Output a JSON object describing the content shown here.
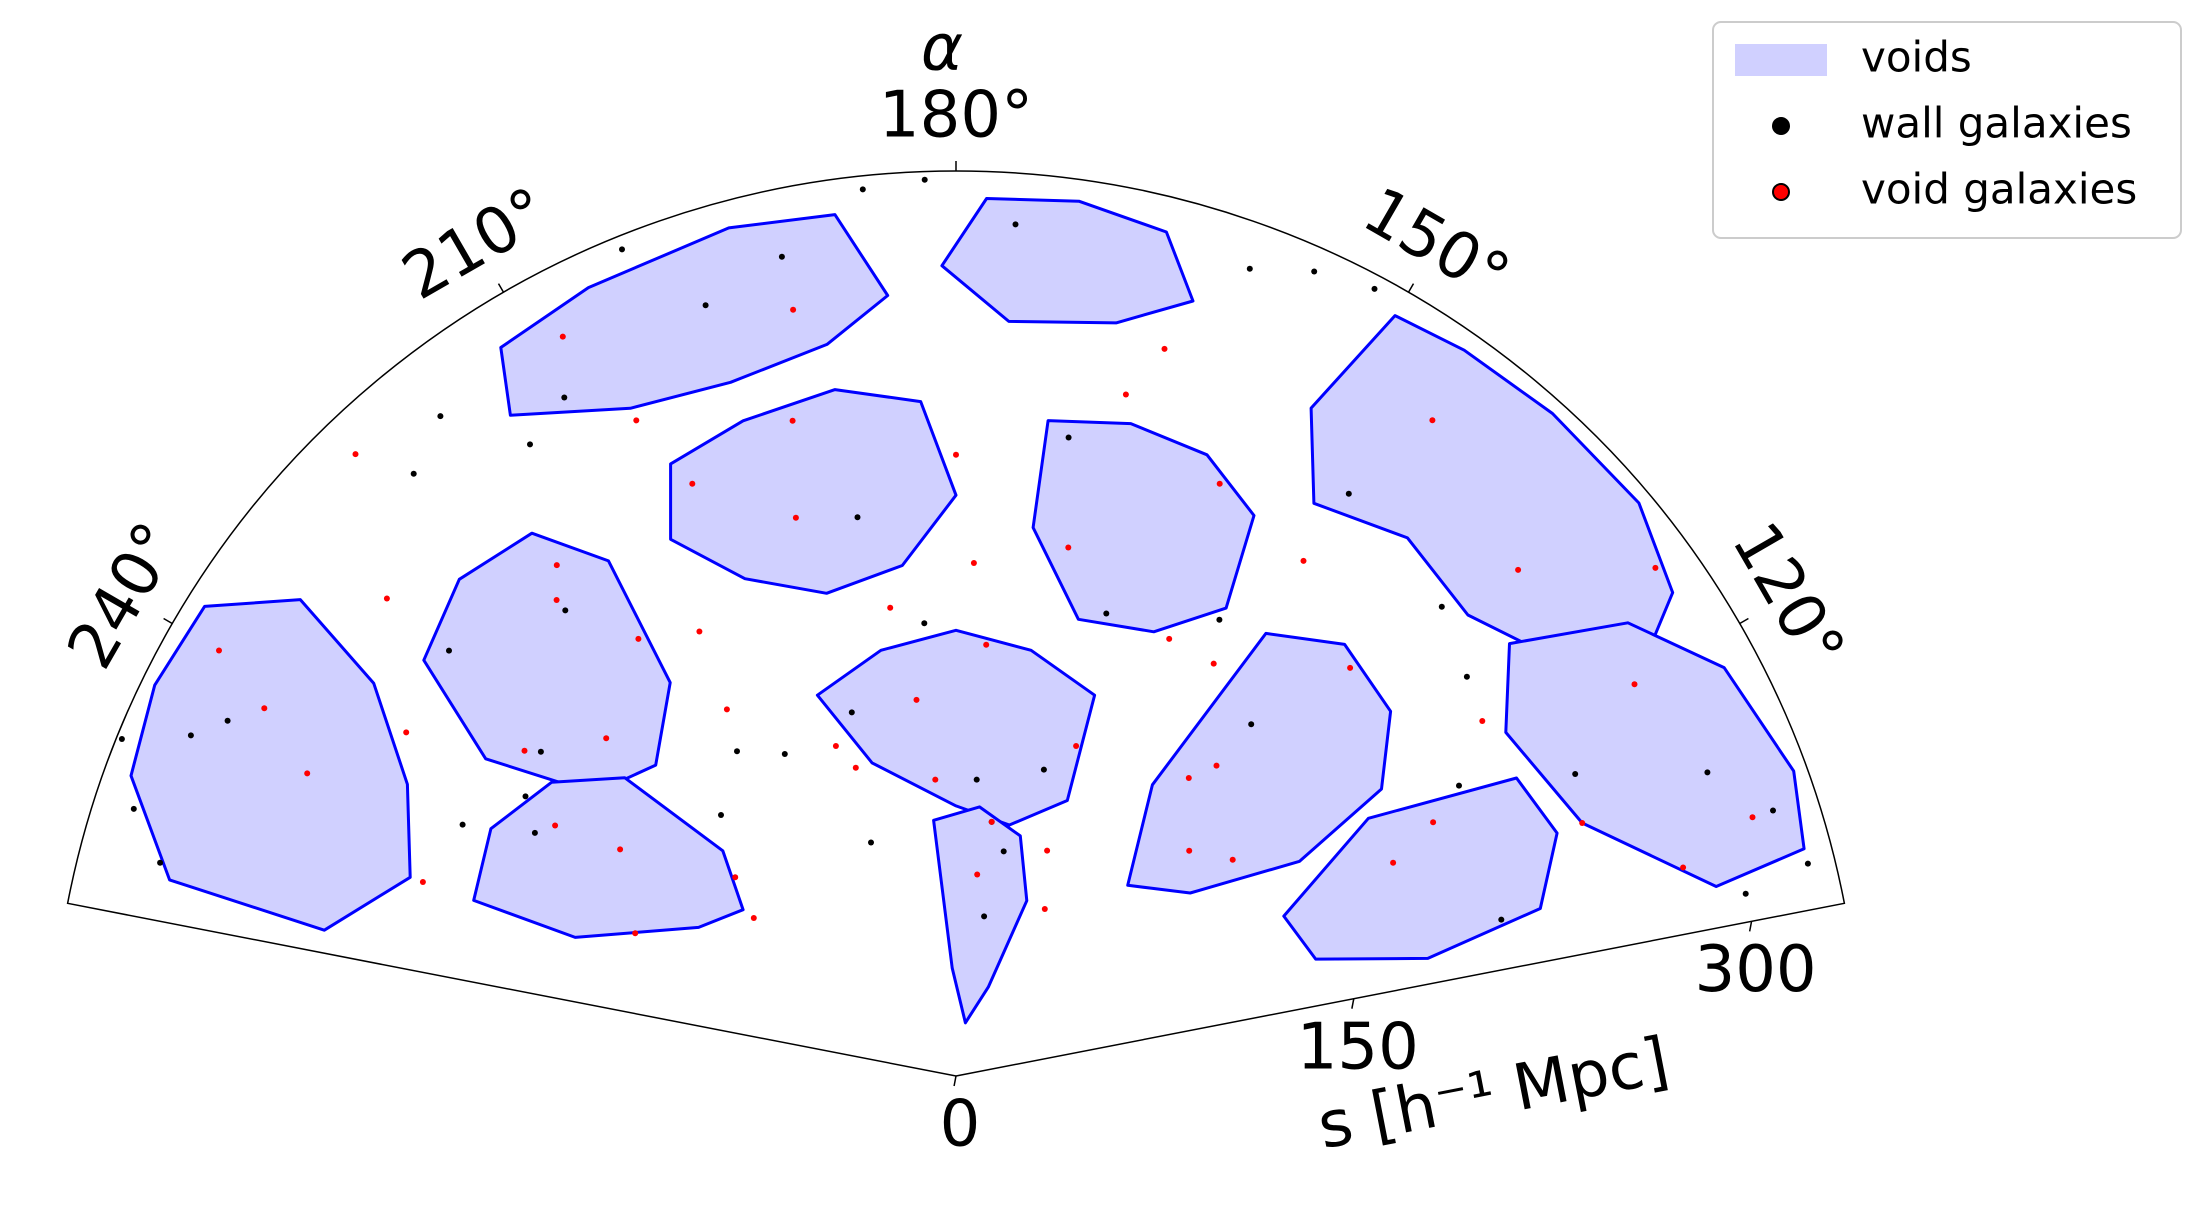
{
  "chart_data": {
    "type": "polar",
    "theta_label": "α",
    "r_label": "s [h⁻¹ Mpc]",
    "thetalim": [
      101,
      259
    ],
    "rlim": [
      0,
      335
    ],
    "thetaticks": [
      {
        "value": 120,
        "label": "120°"
      },
      {
        "value": 150,
        "label": "150°"
      },
      {
        "value": 180,
        "label": "180°"
      },
      {
        "value": 210,
        "label": "210°"
      },
      {
        "value": 240,
        "label": "240°"
      }
    ],
    "rticks": [
      0,
      150,
      300
    ],
    "grid": false,
    "legend": "upper right",
    "series": [
      {
        "name": "voids",
        "color": "#d0d0ff",
        "edge_color": "#0000ff",
        "polygons": [
          {
            "alpha": [
              150,
              145,
              138,
              130,
              124,
              120,
              125,
              132,
              140,
              148,
              152
            ],
            "s": [
              325,
              328,
              330,
              330,
              320,
              290,
              270,
              255,
              260,
              250,
              280
            ]
          },
          {
            "alpha": [
              105,
              110,
              118,
              124,
              128,
              122,
              112,
              104
            ],
            "s": [
              325,
              330,
              322,
              300,
              260,
              240,
              250,
              290
            ]
          },
          {
            "alpha": [
              256,
              250,
              244,
              238,
              234,
              236,
              242,
              250,
              257
            ],
            "s": [
              300,
              325,
              330,
              328,
              300,
              260,
              230,
              215,
              240
            ]
          },
          {
            "alpha": [
              212,
              205,
              195,
              188,
              185,
              190,
              198,
              206,
              214
            ],
            "s": [
              318,
              322,
              325,
              322,
              290,
              275,
              270,
              275,
              295
            ]
          },
          {
            "alpha": [
              178,
              172,
              166,
              163,
              168,
              176,
              181
            ],
            "s": [
              325,
              327,
              322,
              300,
              285,
              280,
              300
            ]
          },
          {
            "alpha": [
              205,
              198,
              190,
              183,
              180,
              186,
              195,
              203,
              208
            ],
            "s": [
              250,
              255,
              258,
              250,
              215,
              190,
              185,
              200,
              225
            ]
          },
          {
            "alpha": [
              172,
              165,
              158,
              152,
              150,
              156,
              165,
              172
            ],
            "s": [
              245,
              250,
              248,
              235,
              200,
              180,
              175,
              205
            ]
          },
          {
            "alpha": [
              200,
              190,
              180,
              170,
              160,
              158,
              168,
              180,
              195
            ],
            "s": [
              150,
              160,
              165,
              160,
              150,
              110,
              95,
              100,
              120
            ]
          },
          {
            "alpha": [
              145,
              138,
              130,
              124,
              122,
              128,
              138,
              146
            ],
            "s": [
              200,
              215,
              210,
              190,
              150,
              110,
              95,
              130
            ]
          },
          {
            "alpha": [
              232,
              225,
              218,
              214,
              216,
              224,
              232,
              236
            ],
            "s": [
              250,
              260,
              255,
              230,
              180,
              160,
              170,
              210
            ]
          },
          {
            "alpha": [
              250,
              242,
              234,
              228,
              226,
              232,
              240,
              250
            ],
            "s": [
              190,
              195,
              185,
              165,
              120,
              100,
              110,
              150
            ]
          },
          {
            "alpha": [
              185,
              175,
              165,
              158,
              160,
              170,
              182
            ],
            "s": [
              95,
              100,
              92,
              70,
              35,
              20,
              40
            ]
          },
          {
            "alpha": [
              118,
              112,
              106,
              104,
              108,
              116,
              122
            ],
            "s": [
              235,
              240,
              225,
              180,
              140,
              135,
              180
            ]
          }
        ]
      },
      {
        "name": "wall galaxies",
        "color": "#000000",
        "alpha": [
          255,
          252,
          248,
          246,
          243,
          240,
          237,
          222,
          218,
          214,
          210,
          202,
          198,
          192,
          186,
          182,
          176,
          170,
          160,
          156,
          152,
          146,
          134,
          128,
          116,
          112,
          108,
          104,
          103,
          106,
          244,
          230,
          220,
          208,
          196,
          176,
          172,
          168,
          164,
          170,
          214,
          222,
          232,
          190,
          150,
          140,
          120,
          162,
          184,
          200
        ],
        "s": [
          305,
          320,
          333,
          310,
          205,
          180,
          190,
          300,
          310,
          282,
          290,
          330,
          300,
          310,
          330,
          332,
          316,
          240,
          318,
          326,
          330,
          260,
          250,
          240,
          255,
          300,
          318,
          325,
          300,
          210,
          300,
          245,
          225,
          135,
          140,
          110,
          95,
          85,
          118,
          60,
          145,
          130,
          195,
          210,
          195,
          170,
          215,
          180,
          168,
          92
        ]
      },
      {
        "name": "void galaxies",
        "color": "#ff0000",
        "alpha": [
          245,
          242,
          240,
          238,
          236,
          233,
          230,
          228,
          226,
          224,
          220,
          216,
          212,
          208,
          204,
          200,
          196,
          192,
          188,
          184,
          180,
          176,
          172,
          168,
          164,
          160,
          156,
          152,
          148,
          144,
          140,
          136,
          132,
          128,
          124,
          120,
          116,
          112,
          108,
          106,
          250,
          246,
          238,
          232,
          218,
          206,
          194,
          186,
          178,
          166,
          158,
          146,
          134,
          126,
          118,
          210,
          198,
          174,
          154,
          142
        ],
        "s": [
          265,
          290,
          315,
          240,
          150,
          200,
          275,
          110,
          180,
          320,
          230,
          200,
          160,
          310,
          240,
          130,
          215,
          290,
          175,
          110,
          230,
          160,
          95,
          200,
          280,
          130,
          240,
          70,
          180,
          300,
          150,
          210,
          280,
          130,
          235,
          290,
          180,
          250,
          310,
          280,
          210,
          130,
          175,
          95,
          240,
          270,
          250,
          140,
          190,
          260,
          90,
          230,
          120,
          320,
          200,
          190,
          120,
          75,
          180,
          140
        ]
      }
    ]
  }
}
